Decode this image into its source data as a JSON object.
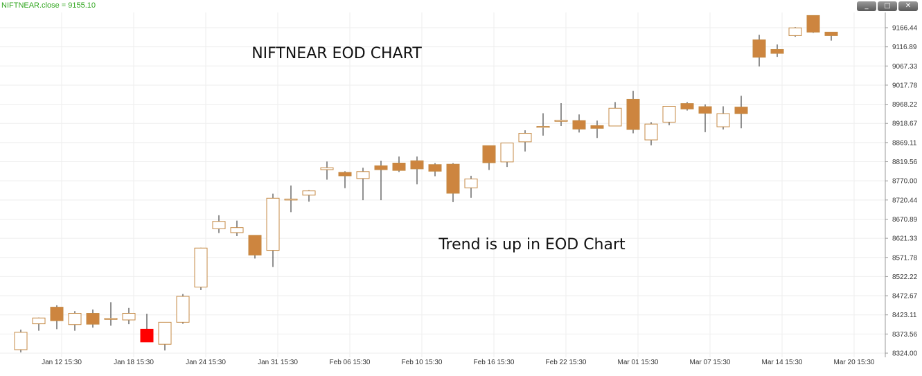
{
  "window": {
    "title": "NIFTNEAR.close = 9155.10",
    "minimize_label": "_",
    "maximize_label": "□",
    "close_label": "✕"
  },
  "colors": {
    "up_candle": "#ffffff",
    "down_candle": "#cd853f",
    "highlight_candle": "#ff0000",
    "candle_border": "#c58a45",
    "wick": "#222222",
    "grid": "#eeeeee"
  },
  "chart_data": {
    "type": "candlestick",
    "title": "NIFTNEAR EOD CHART",
    "annotations": [
      "Trend is up in EOD Chart"
    ],
    "xlabel": "",
    "ylabel": "",
    "ylim": [
      8314,
      9198
    ],
    "grid": true,
    "y_ticks": [
      "9166.44",
      "9116.89",
      "9067.33",
      "9017.78",
      "8968.22",
      "8918.67",
      "8869.11",
      "8819.56",
      "8770.00",
      "8720.44",
      "8670.89",
      "8621.33",
      "8571.78",
      "8522.22",
      "8472.67",
      "8423.11",
      "8373.56",
      "8324.00"
    ],
    "x_ticks": [
      "Jan 12 15:30",
      "Jan 18 15:30",
      "Jan 24 15:30",
      "Jan 31 15:30",
      "Feb 06 15:30",
      "Feb 10 15:30",
      "Feb 16 15:30",
      "Feb 22 15:30",
      "Mar 01 15:30",
      "Mar 07 15:30",
      "Mar 14 15:30",
      "Mar 20 15:30"
    ],
    "candles": [
      {
        "o": 8333,
        "h": 8385,
        "l": 8326,
        "c": 8378
      },
      {
        "o": 8400,
        "h": 8416,
        "l": 8382,
        "c": 8415
      },
      {
        "o": 8443,
        "h": 8448,
        "l": 8386,
        "c": 8408
      },
      {
        "o": 8398,
        "h": 8433,
        "l": 8382,
        "c": 8427
      },
      {
        "o": 8427,
        "h": 8437,
        "l": 8390,
        "c": 8399
      },
      {
        "o": 8413,
        "h": 8456,
        "l": 8395,
        "c": 8414
      },
      {
        "o": 8410,
        "h": 8441,
        "l": 8399,
        "c": 8427
      },
      {
        "o": 8386,
        "h": 8426,
        "l": 8357,
        "c": 8353,
        "highlight": true
      },
      {
        "o": 8347,
        "h": 8404,
        "l": 8331,
        "c": 8404
      },
      {
        "o": 8404,
        "h": 8477,
        "l": 8400,
        "c": 8471
      },
      {
        "o": 8495,
        "h": 8597,
        "l": 8487,
        "c": 8596
      },
      {
        "o": 8646,
        "h": 8681,
        "l": 8635,
        "c": 8665
      },
      {
        "o": 8636,
        "h": 8667,
        "l": 8627,
        "c": 8649
      },
      {
        "o": 8629,
        "h": 8629,
        "l": 8569,
        "c": 8578
      },
      {
        "o": 8590,
        "h": 8737,
        "l": 8547,
        "c": 8725
      },
      {
        "o": 8723,
        "h": 8758,
        "l": 8689,
        "c": 8723
      },
      {
        "o": 8733,
        "h": 8746,
        "l": 8716,
        "c": 8744
      },
      {
        "o": 8799,
        "h": 8820,
        "l": 8773,
        "c": 8804
      },
      {
        "o": 8792,
        "h": 8795,
        "l": 8751,
        "c": 8783
      },
      {
        "o": 8776,
        "h": 8804,
        "l": 8720,
        "c": 8794
      },
      {
        "o": 8809,
        "h": 8822,
        "l": 8720,
        "c": 8799
      },
      {
        "o": 8816,
        "h": 8833,
        "l": 8793,
        "c": 8797
      },
      {
        "o": 8822,
        "h": 8833,
        "l": 8761,
        "c": 8801
      },
      {
        "o": 8812,
        "h": 8816,
        "l": 8782,
        "c": 8795
      },
      {
        "o": 8813,
        "h": 8816,
        "l": 8715,
        "c": 8738
      },
      {
        "o": 8752,
        "h": 8783,
        "l": 8726,
        "c": 8775
      },
      {
        "o": 8861,
        "h": 8861,
        "l": 8798,
        "c": 8817
      },
      {
        "o": 8819,
        "h": 8868,
        "l": 8806,
        "c": 8868
      },
      {
        "o": 8871,
        "h": 8901,
        "l": 8846,
        "c": 8893
      },
      {
        "o": 8909,
        "h": 8945,
        "l": 8887,
        "c": 8911
      },
      {
        "o": 8924,
        "h": 8971,
        "l": 8912,
        "c": 8927
      },
      {
        "o": 8926,
        "h": 8942,
        "l": 8895,
        "c": 8904
      },
      {
        "o": 8913,
        "h": 8926,
        "l": 8881,
        "c": 8906
      },
      {
        "o": 8912,
        "h": 8974,
        "l": 8912,
        "c": 8958
      },
      {
        "o": 8981,
        "h": 9003,
        "l": 8893,
        "c": 8903
      },
      {
        "o": 8876,
        "h": 8922,
        "l": 8862,
        "c": 8917
      },
      {
        "o": 8922,
        "h": 8964,
        "l": 8914,
        "c": 8963
      },
      {
        "o": 8970,
        "h": 8974,
        "l": 8952,
        "c": 8956
      },
      {
        "o": 8962,
        "h": 8968,
        "l": 8896,
        "c": 8945
      },
      {
        "o": 8910,
        "h": 8963,
        "l": 8903,
        "c": 8944
      },
      {
        "o": 8961,
        "h": 8990,
        "l": 8906,
        "c": 8944
      },
      {
        "o": 9135,
        "h": 9148,
        "l": 9066,
        "c": 9090
      },
      {
        "o": 9110,
        "h": 9123,
        "l": 9091,
        "c": 9100
      },
      {
        "o": 9146,
        "h": 9168,
        "l": 9143,
        "c": 9166
      },
      {
        "o": 9198,
        "h": 9198,
        "l": 9153,
        "c": 9155
      },
      {
        "o": 9155,
        "h": 9155,
        "l": 9133,
        "c": 9146
      }
    ]
  }
}
